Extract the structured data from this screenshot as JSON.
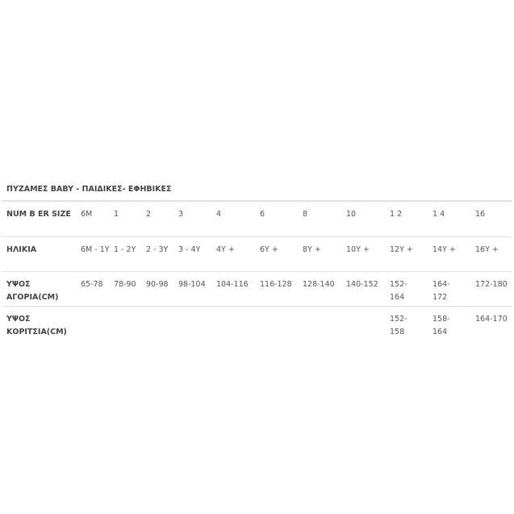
{
  "title": "ΠΥΖΑΜΕΣ BABY - ΠΑΙΔΙΚΕΣ- ΕΦΗΒΙΚΕΣ",
  "rows": [
    {
      "label": "NUM B ER SIZE",
      "cells": [
        "6M",
        "1",
        "2",
        "3",
        "4",
        "6",
        "8",
        "10",
        "1 2",
        "1 4",
        "16"
      ]
    },
    {
      "label": "ΗΛΙΚΙΑ",
      "cells": [
        "6M - 1Y",
        "1 - 2Y",
        "2 - 3Y",
        "3 - 4Y",
        "4Y +",
        "6Y +",
        "8Y +",
        "10Y +",
        "12Y +",
        "14Y +",
        "16Y +"
      ]
    },
    {
      "label": "ΥΨΟΣ ΑΓΟΡΙΑ(CM)",
      "cells": [
        "65-78",
        "78-90",
        "90-98",
        "98-104",
        "104-116",
        "116-128",
        "128-140",
        "140-152",
        "152-164",
        "164-172",
        "172-180"
      ]
    },
    {
      "label": "ΥΨΟΣ ΚΟΡΙΤΣΙΑ(CM)",
      "cells": [
        "",
        "",
        "",
        "",
        "",
        "",
        "",
        "",
        "152-158",
        "158-164",
        "164-170"
      ]
    }
  ]
}
